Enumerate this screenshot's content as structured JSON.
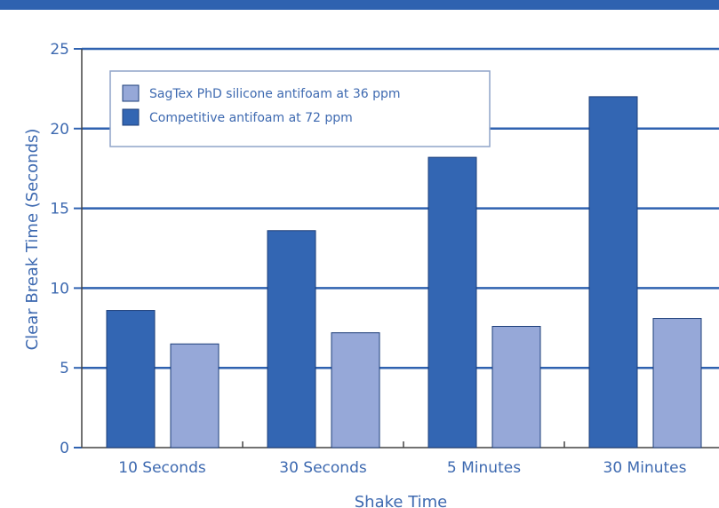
{
  "chart_data": {
    "type": "bar",
    "categories": [
      "10 Seconds",
      "30 Seconds",
      "5 Minutes",
      "30 Minutes"
    ],
    "series": [
      {
        "name": "Competitive antifoam at 72 ppm",
        "values": [
          8.6,
          13.6,
          18.2,
          22.0
        ],
        "color": "#3366b3"
      },
      {
        "name": "SagTex PhD silicone antifoam at 36 ppm",
        "values": [
          6.5,
          7.2,
          7.6,
          8.1
        ],
        "color": "#96a8d8"
      }
    ],
    "legend_order": [
      1,
      0
    ],
    "title": "",
    "xlabel": "Shake Time",
    "ylabel": "Clear Break Time (Seconds)",
    "ylim": [
      0,
      25
    ],
    "yticks": [
      0,
      5,
      10,
      15,
      20,
      25
    ],
    "grid": true,
    "legend_position": "top-left",
    "axis_text_color": "#3d69b0",
    "grid_color": "#2f62b0",
    "bar_outline_color": "#1e3f7a"
  }
}
